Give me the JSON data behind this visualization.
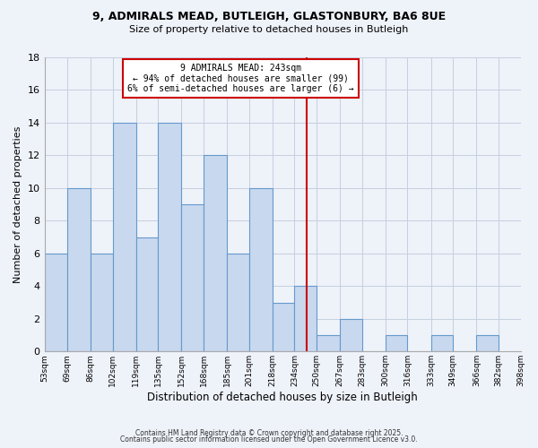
{
  "title1": "9, ADMIRALS MEAD, BUTLEIGH, GLASTONBURY, BA6 8UE",
  "title2": "Size of property relative to detached houses in Butleigh",
  "xlabel": "Distribution of detached houses by size in Butleigh",
  "ylabel": "Number of detached properties",
  "bin_edges": [
    53,
    69,
    86,
    102,
    119,
    135,
    152,
    168,
    185,
    201,
    218,
    234,
    250,
    267,
    283,
    300,
    316,
    333,
    349,
    366,
    382
  ],
  "bar_heights": [
    6,
    10,
    6,
    14,
    7,
    14,
    9,
    12,
    6,
    10,
    3,
    4,
    1,
    2,
    0,
    1,
    0,
    1,
    0,
    1
  ],
  "bar_color": "#c8d8ee",
  "bar_edgecolor": "#6699cc",
  "grid_color": "#c5cfe0",
  "bg_color": "#eef2f9",
  "red_line_x": 243,
  "annotation_title": "9 ADMIRALS MEAD: 243sqm",
  "annotation_line1": "← 94% of detached houses are smaller (99)",
  "annotation_line2": "6% of semi-detached houses are larger (6) →",
  "annotation_box_color": "#cc0000",
  "ylim": [
    0,
    18
  ],
  "yticks": [
    0,
    2,
    4,
    6,
    8,
    10,
    12,
    14,
    16,
    18
  ],
  "footer1": "Contains HM Land Registry data © Crown copyright and database right 2025.",
  "footer2": "Contains public sector information licensed under the Open Government Licence v3.0.",
  "xlim_right": 398
}
